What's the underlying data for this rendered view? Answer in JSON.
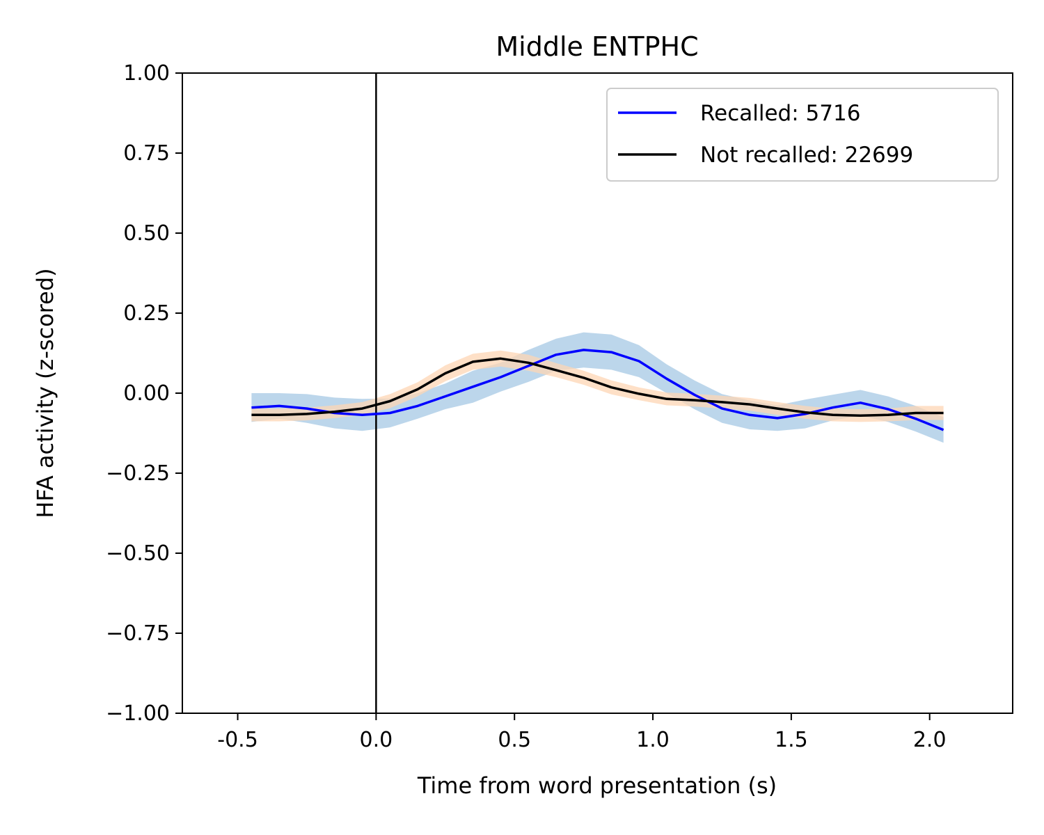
{
  "chart_data": {
    "type": "line",
    "title": "Middle ENTPHC",
    "xlabel": "Time from word presentation (s)",
    "ylabel": "HFA activity (z-scored)",
    "xlim": [
      -0.7,
      2.3
    ],
    "ylim": [
      -1.0,
      1.0
    ],
    "x_ticks": [
      -0.5,
      0.0,
      0.5,
      1.0,
      1.5,
      2.0
    ],
    "x_tick_labels": [
      "-0.5",
      "0.0",
      "0.5",
      "1.0",
      "1.5",
      "2.0"
    ],
    "y_ticks": [
      1.0,
      0.75,
      0.5,
      0.25,
      0.0,
      -0.25,
      -0.5,
      -0.75,
      -1.0
    ],
    "y_tick_labels": [
      "1.00",
      "0.75",
      "0.50",
      "0.25",
      "0.00",
      "−0.25",
      "−0.50",
      "−0.75",
      "−1.00"
    ],
    "vline_x": 0.0,
    "grid": false,
    "legend_position": "top-right",
    "x": [
      -0.45,
      -0.35,
      -0.25,
      -0.15,
      -0.05,
      0.05,
      0.15,
      0.25,
      0.35,
      0.45,
      0.55,
      0.65,
      0.75,
      0.85,
      0.95,
      1.05,
      1.15,
      1.25,
      1.35,
      1.45,
      1.55,
      1.65,
      1.75,
      1.85,
      1.95,
      2.05
    ],
    "series": [
      {
        "name": "Recalled: 5716",
        "color": "#0000ff",
        "band_color": "#b8d4ea",
        "values": [
          -0.045,
          -0.04,
          -0.048,
          -0.062,
          -0.068,
          -0.062,
          -0.04,
          -0.01,
          0.02,
          0.05,
          0.085,
          0.12,
          0.135,
          0.128,
          0.1,
          0.045,
          -0.005,
          -0.048,
          -0.068,
          -0.078,
          -0.065,
          -0.045,
          -0.03,
          -0.05,
          -0.08,
          -0.115
        ],
        "band_halfwidth": [
          0.045,
          0.04,
          0.045,
          0.048,
          0.05,
          0.045,
          0.04,
          0.04,
          0.05,
          0.045,
          0.05,
          0.05,
          0.055,
          0.055,
          0.05,
          0.045,
          0.045,
          0.045,
          0.045,
          0.04,
          0.045,
          0.04,
          0.04,
          0.04,
          0.04,
          0.04
        ]
      },
      {
        "name": "Not recalled: 22699",
        "color": "#000000",
        "band_color": "#fdd5b4",
        "values": [
          -0.068,
          -0.068,
          -0.065,
          -0.058,
          -0.048,
          -0.025,
          0.012,
          0.062,
          0.098,
          0.108,
          0.095,
          0.072,
          0.048,
          0.018,
          -0.002,
          -0.018,
          -0.022,
          -0.028,
          -0.035,
          -0.048,
          -0.06,
          -0.068,
          -0.07,
          -0.068,
          -0.062,
          -0.062
        ],
        "band_halfwidth": [
          0.02,
          0.02,
          0.02,
          0.02,
          0.02,
          0.022,
          0.022,
          0.025,
          0.025,
          0.025,
          0.025,
          0.022,
          0.022,
          0.022,
          0.02,
          0.02,
          0.02,
          0.02,
          0.02,
          0.02,
          0.02,
          0.02,
          0.02,
          0.02,
          0.022,
          0.022
        ]
      }
    ]
  }
}
